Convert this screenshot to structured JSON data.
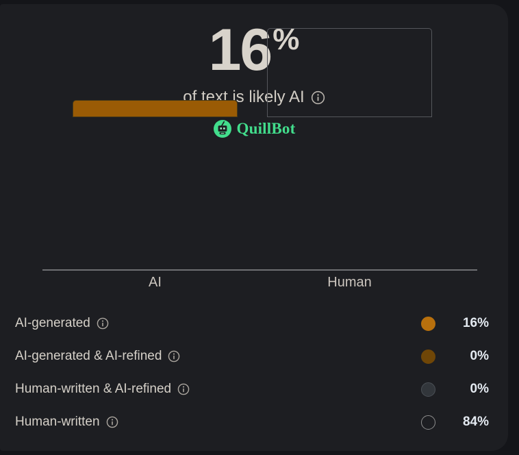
{
  "header": {
    "score": "16",
    "percent_sign": "%",
    "subtitle": "of text is likely AI",
    "brand": "QuillBot"
  },
  "chart_data": {
    "type": "bar",
    "categories": [
      "AI",
      "Human"
    ],
    "values": [
      16,
      84
    ],
    "ylim": [
      0,
      100
    ],
    "title": "",
    "xlabel": "",
    "ylabel": "",
    "grid": false,
    "legend_position": "below",
    "bar_styles": [
      {
        "fill": "#9a5b05",
        "outline": "#4a3a16"
      },
      {
        "fill": "transparent",
        "outline": "#55575c"
      }
    ]
  },
  "legend": {
    "rows": [
      {
        "label": "AI-generated",
        "value": "16%",
        "dot_fill": "#b8700d",
        "dot_border": "#b8700d"
      },
      {
        "label": "AI-generated & AI-refined",
        "value": "0%",
        "dot_fill": "#6f4607",
        "dot_border": "#6f4607"
      },
      {
        "label": "Human-written & AI-refined",
        "value": "0%",
        "dot_fill": "#32363b",
        "dot_border": "#4b5056"
      },
      {
        "label": "Human-written",
        "value": "84%",
        "dot_fill": "transparent",
        "dot_border": "#8f8f8f"
      }
    ]
  },
  "colors": {
    "outer_background": "#141519",
    "card_background": "#1d1e22",
    "score_text": "#d8d3cb",
    "brand_green": "#42dd8c",
    "value_text": "#e4eaf1",
    "axis": "#6f7073"
  }
}
